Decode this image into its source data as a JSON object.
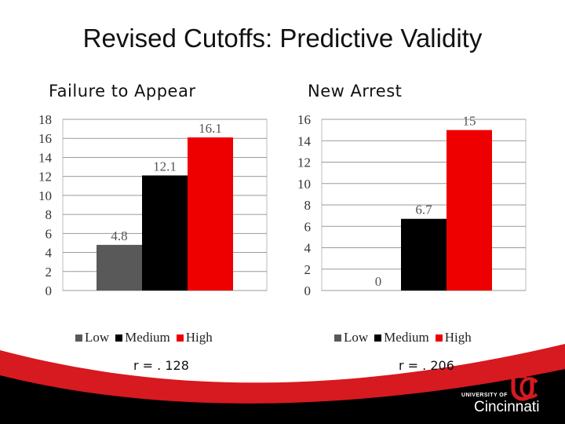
{
  "slide": {
    "title": "Revised Cutoffs: Predictive Validity"
  },
  "charts": [
    {
      "subtitle": "Failure to Appear",
      "r_text": "r = . 128"
    },
    {
      "subtitle": "New Arrest",
      "r_text": "r = . 206"
    }
  ],
  "logo": {
    "university_of": "UNIVERSITY OF",
    "name": "Cincinnati"
  },
  "colors": {
    "low": "#595959",
    "medium": "#000000",
    "high": "#ee0000",
    "brand_red": "#d71920",
    "footer_dark": "#000000"
  },
  "chart_data": [
    {
      "type": "bar",
      "title": "Failure to Appear",
      "categories": [
        "Low",
        "Medium",
        "High"
      ],
      "values": [
        4.8,
        12.1,
        16.1
      ],
      "data_labels": [
        "4.8",
        "12.1",
        "16.1"
      ],
      "ylim": [
        0,
        18
      ],
      "yticks": [
        0,
        2,
        4,
        6,
        8,
        10,
        12,
        14,
        16,
        18
      ],
      "grid": true,
      "legend": [
        "Low",
        "Medium",
        "High"
      ],
      "legend_position": "bottom",
      "series_colors": [
        "#595959",
        "#000000",
        "#ee0000"
      ]
    },
    {
      "type": "bar",
      "title": "New Arrest",
      "categories": [
        "Low",
        "Medium",
        "High"
      ],
      "values": [
        0,
        6.7,
        15
      ],
      "data_labels": [
        "0",
        "6.7",
        "15"
      ],
      "ylim": [
        0,
        16
      ],
      "yticks": [
        0,
        2,
        4,
        6,
        8,
        10,
        12,
        14,
        16
      ],
      "grid": true,
      "legend": [
        "Low",
        "Medium",
        "High"
      ],
      "legend_position": "bottom",
      "series_colors": [
        "#595959",
        "#000000",
        "#ee0000"
      ]
    }
  ]
}
